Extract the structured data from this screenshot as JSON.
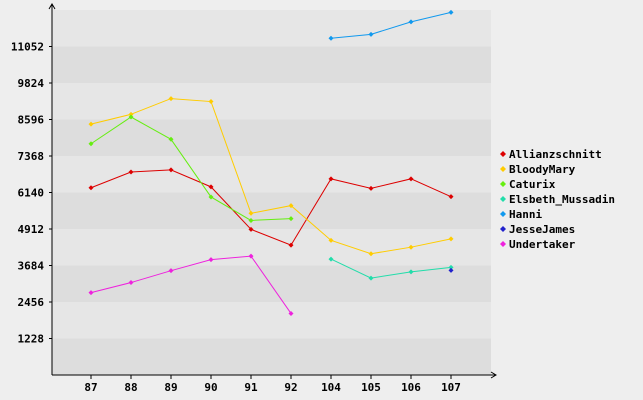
{
  "chart_data": {
    "type": "line",
    "title": "",
    "xlabel": "",
    "ylabel": "",
    "categories": [
      "87",
      "88",
      "89",
      "90",
      "91",
      "92",
      "104",
      "105",
      "106",
      "107"
    ],
    "yticks": [
      "1228",
      "2456",
      "3684",
      "4912",
      "6140",
      "7368",
      "8596",
      "9824",
      "11052"
    ],
    "ylim": [
      0,
      12280
    ],
    "grid": true,
    "legend": "right",
    "series": [
      {
        "name": "Allianzschnitt",
        "color": "#dd0000",
        "values": [
          6300,
          6830,
          6900,
          6330,
          4900,
          4370,
          6600,
          6280,
          6600,
          6000
        ]
      },
      {
        "name": "BloodyMary",
        "color": "#ffcc00",
        "values": [
          8440,
          8770,
          9300,
          9200,
          5440,
          5700,
          4530,
          4080,
          4300,
          4580
        ]
      },
      {
        "name": "Caturix",
        "color": "#66ee11",
        "values": [
          7780,
          8680,
          7930,
          5990,
          5200,
          5260,
          null,
          null,
          null,
          null
        ]
      },
      {
        "name": "Elsbeth_Mussadin",
        "color": "#22ddaa",
        "values": [
          null,
          null,
          null,
          null,
          null,
          null,
          3900,
          3260,
          3470,
          3620
        ]
      },
      {
        "name": "Hanni",
        "color": "#1199ee",
        "values": [
          null,
          null,
          null,
          null,
          null,
          null,
          11330,
          11460,
          11880,
          12200
        ]
      },
      {
        "name": "JesseJames",
        "color": "#2222cc",
        "values": [
          null,
          null,
          null,
          null,
          null,
          null,
          null,
          null,
          null,
          3520
        ]
      },
      {
        "name": "Undertaker",
        "color": "#ee22dd",
        "values": [
          2770,
          3110,
          3510,
          3880,
          4000,
          2070,
          null,
          null,
          null,
          null
        ]
      }
    ]
  }
}
